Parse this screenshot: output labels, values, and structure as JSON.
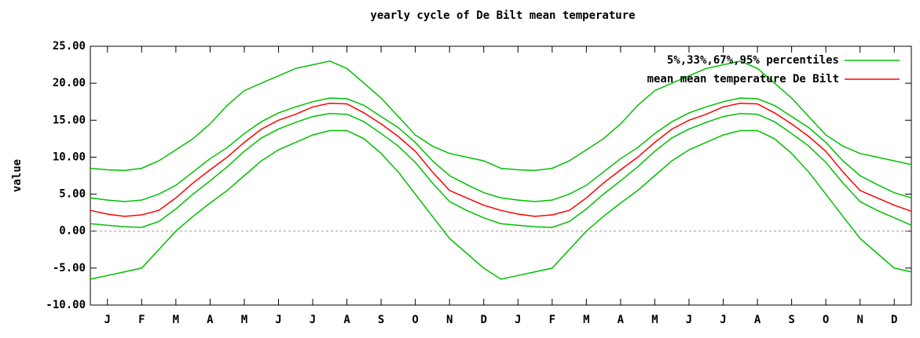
{
  "chart_data": {
    "type": "line",
    "title": "yearly cycle of De Bilt mean temperature",
    "ylabel": "value",
    "x": [
      0,
      0.5,
      1,
      1.5,
      2,
      2.5,
      3,
      3.5,
      4,
      4.5,
      5,
      5.5,
      6,
      6.5,
      7,
      7.5,
      8,
      8.5,
      9,
      9.5,
      10,
      10.5,
      11,
      11.5,
      12,
      12.5,
      13,
      13.5,
      14,
      14.5,
      15,
      15.5,
      16,
      16.5,
      17,
      17.5,
      18,
      18.5,
      19,
      19.5,
      20,
      20.5,
      21,
      21.5,
      22,
      22.5,
      23,
      23.5,
      24
    ],
    "xlim": [
      0,
      24
    ],
    "xticks": [
      {
        "value": 0.5,
        "label": "J"
      },
      {
        "value": 1.5,
        "label": "F"
      },
      {
        "value": 2.5,
        "label": "M"
      },
      {
        "value": 3.5,
        "label": "A"
      },
      {
        "value": 4.5,
        "label": "M"
      },
      {
        "value": 5.5,
        "label": "J"
      },
      {
        "value": 6.5,
        "label": "J"
      },
      {
        "value": 7.5,
        "label": "A"
      },
      {
        "value": 8.5,
        "label": "S"
      },
      {
        "value": 9.5,
        "label": "O"
      },
      {
        "value": 10.5,
        "label": "N"
      },
      {
        "value": 11.5,
        "label": "D"
      },
      {
        "value": 12.5,
        "label": "J"
      },
      {
        "value": 13.5,
        "label": "F"
      },
      {
        "value": 14.5,
        "label": "M"
      },
      {
        "value": 15.5,
        "label": "A"
      },
      {
        "value": 16.5,
        "label": "M"
      },
      {
        "value": 17.5,
        "label": "J"
      },
      {
        "value": 18.5,
        "label": "J"
      },
      {
        "value": 19.5,
        "label": "A"
      },
      {
        "value": 20.5,
        "label": "S"
      },
      {
        "value": 21.5,
        "label": "O"
      },
      {
        "value": 22.5,
        "label": "N"
      },
      {
        "value": 23.5,
        "label": "D"
      }
    ],
    "ylim": [
      -10,
      25
    ],
    "yticks": [
      {
        "value": -10,
        "label": "-10.00"
      },
      {
        "value": -5,
        "label": "-5.00"
      },
      {
        "value": 0,
        "label": "0.00"
      },
      {
        "value": 5,
        "label": "5.00"
      },
      {
        "value": 10,
        "label": "10.00"
      },
      {
        "value": 15,
        "label": "15.00"
      },
      {
        "value": 20,
        "label": "20.00"
      },
      {
        "value": 25,
        "label": "25.00"
      }
    ],
    "zero_line": true,
    "legend": "top-right",
    "series": [
      {
        "name": "5%,33%,67%,95% percentiles",
        "color": "#00c000",
        "values": [
          8.5,
          8.3,
          8.2,
          8.5,
          9.5,
          11,
          12.5,
          14.5,
          17,
          19,
          20,
          21,
          22,
          22.5,
          23,
          22,
          20,
          18,
          15.5,
          13,
          11.5,
          10.5,
          10,
          9.5,
          8.5,
          8.3,
          8.2,
          8.5,
          9.5,
          11,
          12.5,
          14.5,
          17,
          19,
          20,
          21,
          22,
          22.5,
          23,
          22,
          20,
          18,
          15.5,
          13,
          11.5,
          10.5,
          10,
          9.5,
          9
        ]
      },
      {
        "color": "#00c000",
        "values": [
          4.5,
          4.2,
          4,
          4.2,
          5,
          6.2,
          8,
          9.8,
          11.3,
          13.2,
          14.8,
          16,
          16.8,
          17.5,
          18,
          17.9,
          17,
          15.5,
          14,
          12,
          9.5,
          7.5,
          6.3,
          5.2,
          4.5,
          4.2,
          4,
          4.2,
          5,
          6.2,
          8,
          9.8,
          11.3,
          13.2,
          14.8,
          16,
          16.8,
          17.5,
          18,
          17.9,
          17,
          15.5,
          14,
          12,
          9.5,
          7.5,
          6.3,
          5.2,
          4.5
        ]
      },
      {
        "color": "#00c000",
        "values": [
          1,
          0.8,
          0.6,
          0.5,
          1.3,
          3,
          5,
          6.8,
          8.7,
          10.8,
          12.6,
          13.8,
          14.7,
          15.5,
          15.9,
          15.8,
          14.8,
          13.2,
          11.5,
          9.3,
          6.5,
          4,
          2.8,
          1.8,
          1,
          0.8,
          0.6,
          0.5,
          1.3,
          3,
          5,
          6.8,
          8.7,
          10.8,
          12.6,
          13.8,
          14.7,
          15.5,
          15.9,
          15.8,
          14.8,
          13.2,
          11.5,
          9.3,
          6.5,
          4,
          2.8,
          1.8,
          0.8
        ]
      },
      {
        "color": "#00c000",
        "values": [
          -6.5,
          -6,
          -5.5,
          -5,
          -2.5,
          0,
          2,
          3.8,
          5.5,
          7.5,
          9.5,
          11,
          12,
          13,
          13.6,
          13.6,
          12.5,
          10.5,
          8,
          5,
          2,
          -1,
          -3,
          -5,
          -6.5,
          -6,
          -5.5,
          -5,
          -2.5,
          0,
          2,
          3.8,
          5.5,
          7.5,
          9.5,
          11,
          12,
          13,
          13.6,
          13.6,
          12.5,
          10.5,
          8,
          5,
          2,
          -1,
          -3,
          -5,
          -5.5
        ]
      },
      {
        "name": "mean mean temperature De Bilt",
        "color": "#ff0000",
        "values": [
          2.8,
          2.3,
          2,
          2.2,
          2.8,
          4.5,
          6.5,
          8.3,
          10,
          12,
          13.8,
          15,
          15.8,
          16.8,
          17.3,
          17.2,
          16,
          14.5,
          12.8,
          10.8,
          8,
          5.5,
          4.5,
          3.5,
          2.8,
          2.3,
          2,
          2.2,
          2.8,
          4.5,
          6.5,
          8.3,
          10,
          12,
          13.8,
          15,
          15.8,
          16.8,
          17.3,
          17.2,
          16,
          14.5,
          12.8,
          10.8,
          8,
          5.5,
          4.5,
          3.5,
          2.7
        ]
      }
    ]
  }
}
